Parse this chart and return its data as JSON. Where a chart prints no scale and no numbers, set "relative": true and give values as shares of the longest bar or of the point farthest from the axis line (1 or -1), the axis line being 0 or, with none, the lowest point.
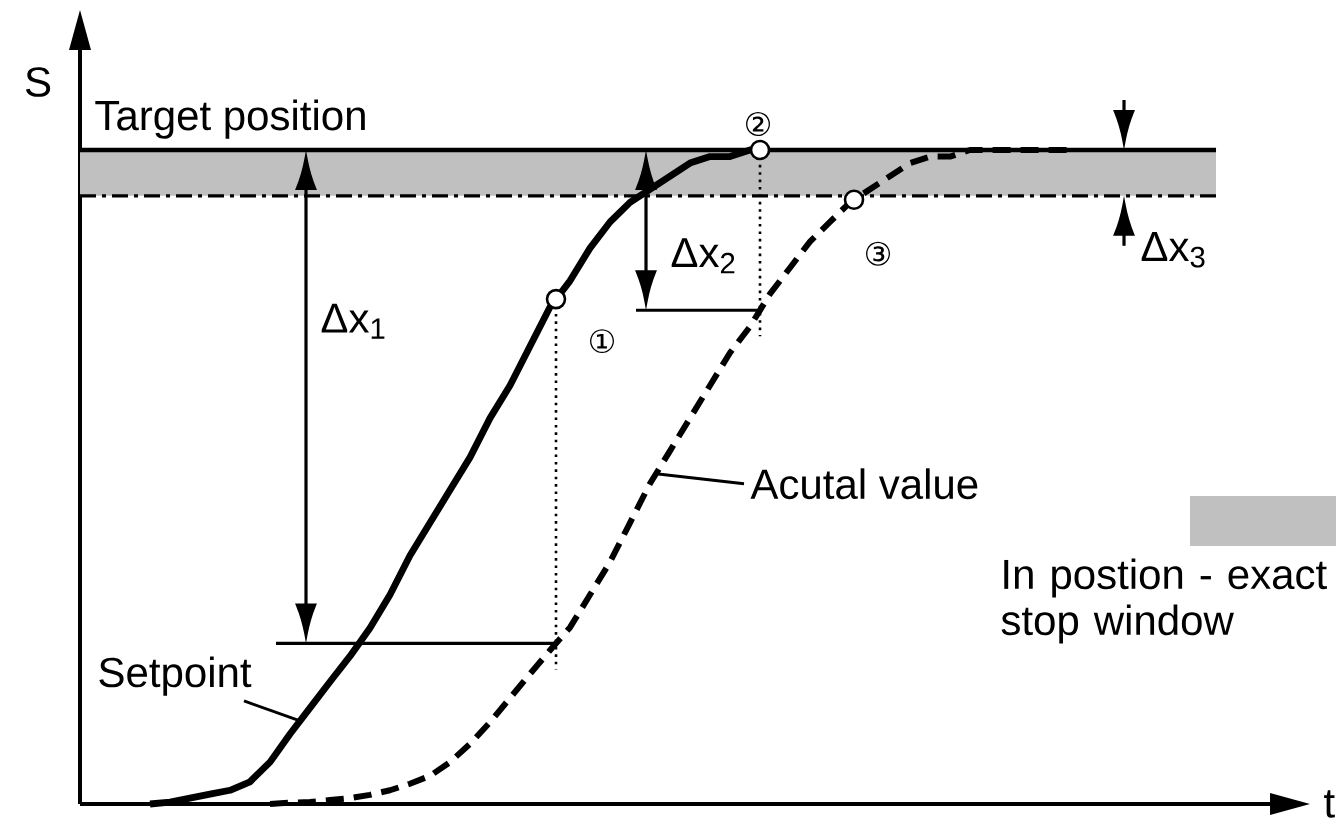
{
  "chart_data": {
    "type": "line",
    "relative": true,
    "xlabel": "t",
    "ylabel": "S",
    "legend": "right",
    "categories": [
      null,
      null,
      null,
      null,
      null,
      null,
      null,
      null,
      null,
      null,
      null,
      null,
      null,
      null,
      null,
      null,
      null,
      null,
      null,
      null,
      null,
      null,
      null,
      null,
      null,
      null,
      null,
      null,
      null,
      null,
      null,
      null,
      null,
      null,
      null,
      null,
      null,
      null,
      null,
      null,
      null,
      null,
      null,
      null,
      null,
      null,
      null,
      null,
      null,
      null,
      null,
      null,
      null,
      null,
      null,
      null,
      null,
      null,
      null,
      null,
      null,
      null
    ],
    "series": [
      {
        "name": "Setpoint",
        "color": "#000000",
        "line_style": "solid",
        "values": [
          null,
          null,
          null,
          0.0,
          0.003,
          0.009,
          0.015,
          0.021,
          0.034,
          0.064,
          0.107,
          0.147,
          0.187,
          0.226,
          0.269,
          0.32,
          0.38,
          0.43,
          0.48,
          0.53,
          0.59,
          0.64,
          0.7,
          0.76,
          0.8,
          0.85,
          0.89,
          0.92,
          0.94,
          0.96,
          0.98,
          0.99,
          0.99,
          1.0,
          1.0,
          null,
          null,
          null,
          null,
          null,
          null,
          null,
          null,
          null,
          null,
          null,
          null,
          null,
          null,
          null,
          null,
          null,
          null,
          null,
          null,
          null,
          null,
          null,
          null,
          null,
          null,
          null
        ]
      },
      {
        "name": "Acutal value",
        "color": "#000000",
        "line_style": "dashed",
        "values": [
          null,
          null,
          null,
          null,
          null,
          null,
          null,
          null,
          null,
          0.0,
          0.002,
          0.003,
          0.006,
          0.009,
          0.014,
          0.021,
          0.031,
          0.043,
          0.064,
          0.092,
          0.125,
          0.162,
          0.199,
          0.235,
          0.27,
          0.32,
          0.37,
          0.43,
          0.49,
          0.54,
          0.59,
          0.64,
          0.69,
          0.73,
          0.78,
          0.82,
          0.86,
          0.89,
          0.92,
          0.94,
          0.96,
          0.98,
          0.99,
          0.99,
          1.0,
          1.0,
          1.0,
          1.0,
          1.0,
          1.0,
          null,
          null,
          null,
          null,
          null,
          null,
          null,
          null,
          null,
          null,
          null,
          null
        ]
      }
    ],
    "ref_lines": [
      {
        "axis": "y",
        "value": 1,
        "label": "Target position",
        "color": "#000000",
        "line_style": "solid"
      },
      {
        "axis": "y",
        "value": 0.93,
        "color": "#000000",
        "line_style": "dashdot"
      }
    ],
    "bands": [
      {
        "axis": "y",
        "from": 0.93,
        "to": 1,
        "label": "In postion - exact stop window",
        "color": "#c0c0c0"
      }
    ],
    "annotations": [
      "Δx$_{1}$",
      "Δx$_{2}$",
      "Δx$_{3}$",
      "①",
      "②",
      "③"
    ]
  }
}
